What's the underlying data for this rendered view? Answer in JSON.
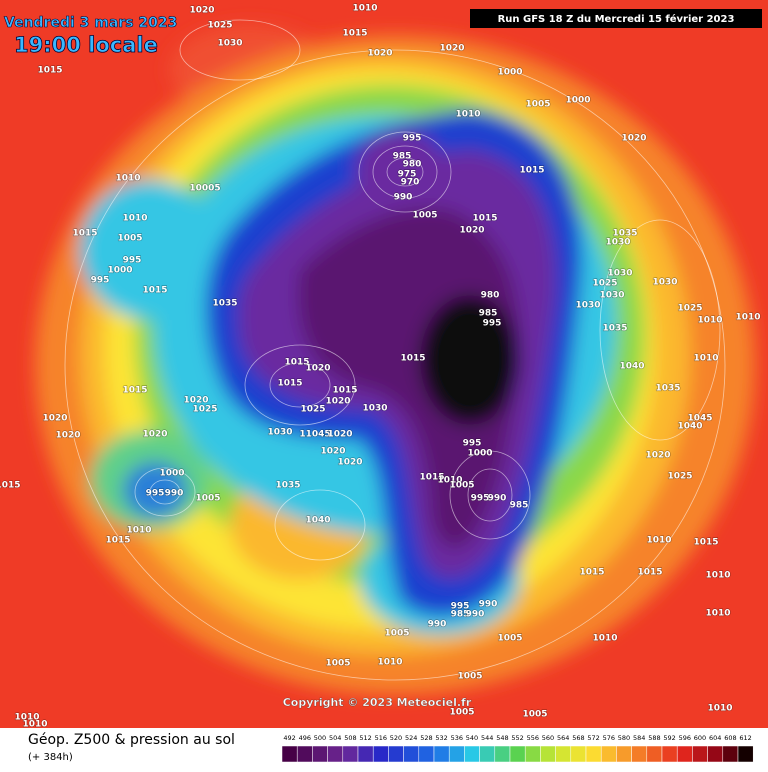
{
  "header": {
    "date": "Vendredi 3 mars 2023",
    "time": "19:00 locale",
    "run": "Run GFS 18 Z du Mercredi 15 février 2023"
  },
  "footer": {
    "title": "Géop. Z500 & pression au sol",
    "lead": "(+ 384h)",
    "copyright": "Copyright © 2023 Meteociel.fr"
  },
  "colorbar": {
    "labels": [
      492,
      496,
      500,
      504,
      508,
      512,
      516,
      520,
      524,
      528,
      532,
      536,
      540,
      544,
      548,
      552,
      556,
      560,
      564,
      568,
      572,
      576,
      580,
      584,
      588,
      592,
      596,
      600,
      604,
      608,
      612
    ]
  },
  "pressure_labels": [
    1010,
    1020,
    1025,
    1030,
    1015,
    1015,
    1020,
    1020,
    1000,
    1010,
    1005,
    1000,
    1020,
    995,
    985,
    980,
    975,
    970,
    990,
    1005,
    1015,
    1015,
    1020,
    1010,
    10005,
    1010,
    1015,
    1005,
    995,
    1000,
    995,
    1015,
    1035,
    1035,
    1030,
    1030,
    1025,
    1030,
    1030,
    1035,
    1030,
    1025,
    1010,
    1010,
    980,
    985,
    995,
    1015,
    1020,
    1015,
    1015,
    1020,
    1025,
    1030,
    1015,
    1015,
    1020,
    1025,
    1020,
    1020,
    1020,
    1030,
    11045,
    1020,
    1020,
    1020,
    1040,
    1035,
    1010,
    1045,
    1040,
    995,
    1000,
    1020,
    1015,
    1010,
    1005,
    995,
    990,
    985,
    1000,
    995,
    990,
    1005,
    1035,
    1025,
    1015,
    1040,
    1010,
    1015,
    1010,
    1015,
    1015,
    1015,
    1010,
    995,
    990,
    985,
    990,
    990,
    1005,
    1005,
    1010,
    1005,
    1010,
    1005,
    1010,
    1005,
    1005,
    1010,
    1010,
    1010
  ]
}
